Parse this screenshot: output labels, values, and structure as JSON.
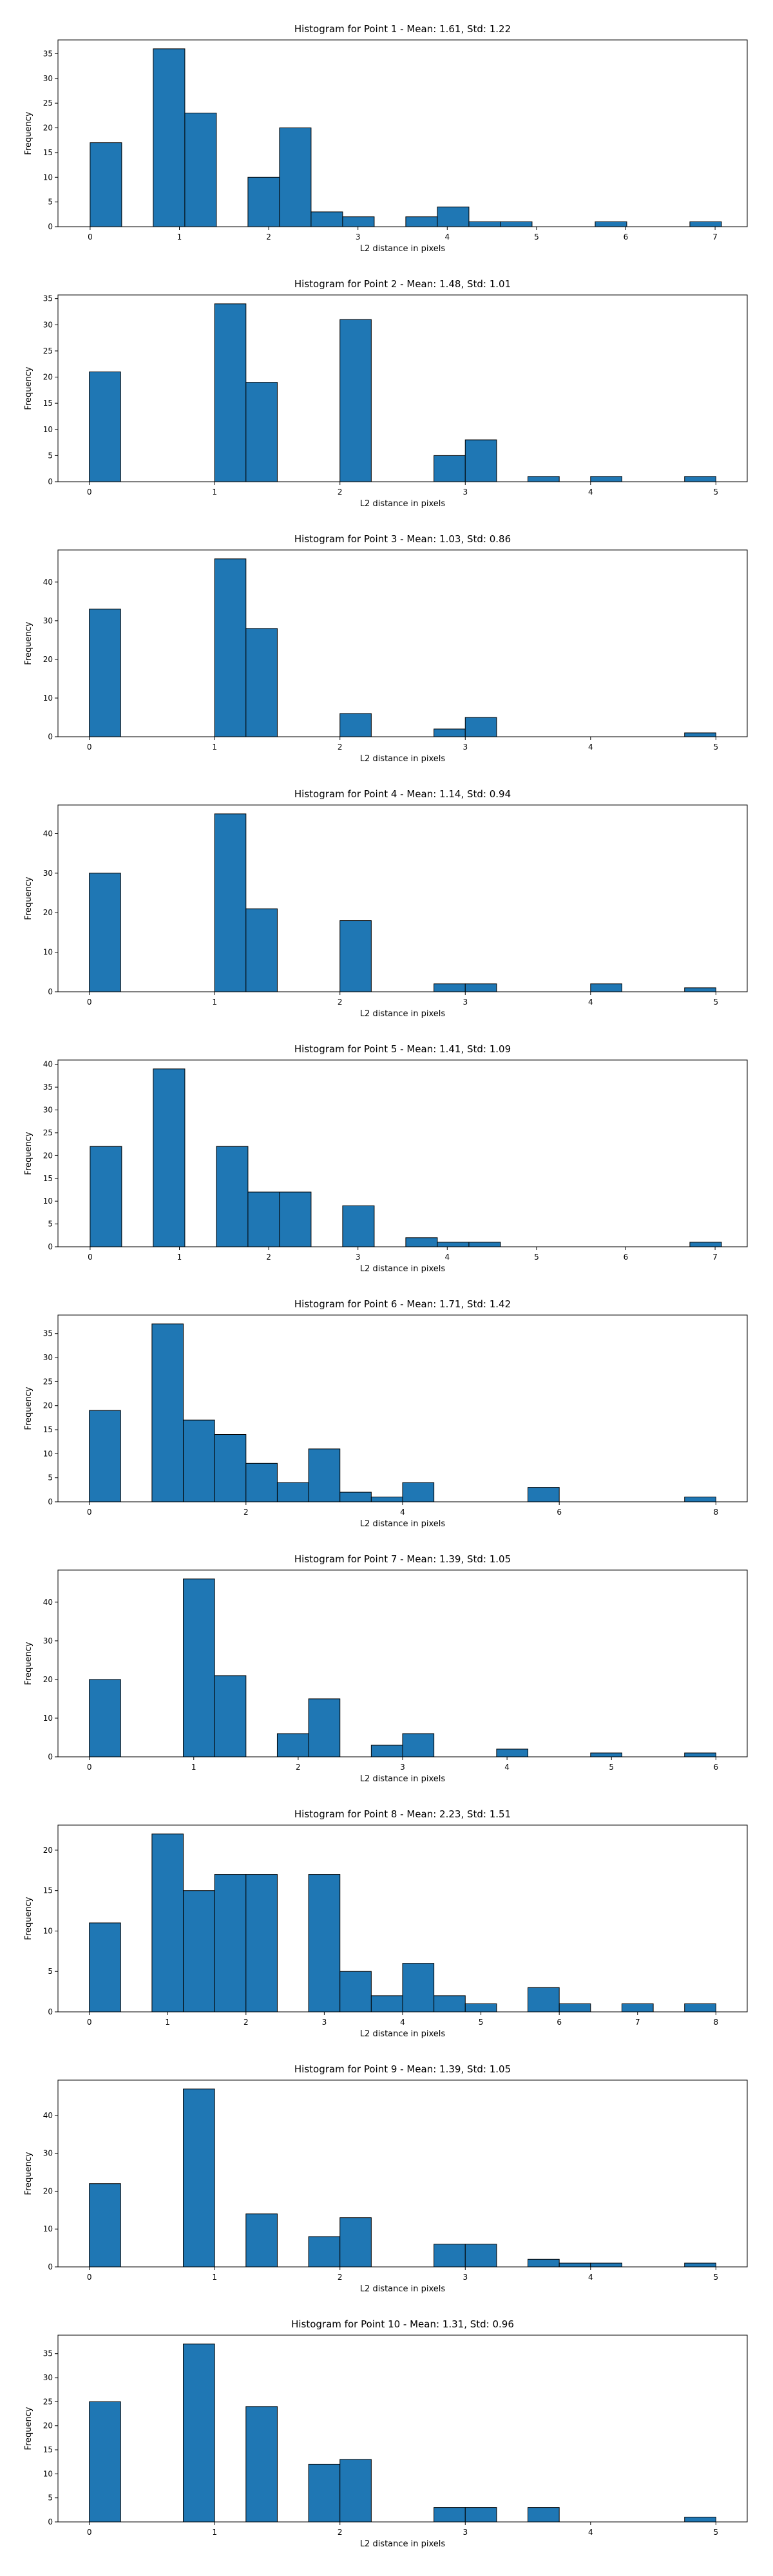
{
  "figure": {
    "background": "#ffffff",
    "bar_color": "#1f77b4",
    "edge_color": "#000000"
  },
  "chart_data": [
    {
      "type": "bar",
      "title": "Histogram for Point 1 - Mean: 1.61, Std: 1.22",
      "xlabel": "L2 distance in pixels",
      "ylabel": "Frequency",
      "xlim": [
        -0.36,
        7.36
      ],
      "ylim": [
        0,
        37.8
      ],
      "xticks": [
        0,
        1,
        2,
        3,
        4,
        5,
        6,
        7
      ],
      "yticks": [
        0,
        5,
        10,
        15,
        20,
        25,
        30,
        35
      ],
      "bin_width": 0.3536,
      "bins": [
        {
          "x": 0.0,
          "count": 17
        },
        {
          "x": 0.7071,
          "count": 36
        },
        {
          "x": 1.0607,
          "count": 23
        },
        {
          "x": 1.7678,
          "count": 10
        },
        {
          "x": 2.1213,
          "count": 20
        },
        {
          "x": 2.4749,
          "count": 3
        },
        {
          "x": 2.8284,
          "count": 2
        },
        {
          "x": 3.5355,
          "count": 2
        },
        {
          "x": 3.8891,
          "count": 4
        },
        {
          "x": 4.2426,
          "count": 1
        },
        {
          "x": 4.5962,
          "count": 1
        },
        {
          "x": 5.6569,
          "count": 1
        },
        {
          "x": 6.7175,
          "count": 1
        }
      ]
    },
    {
      "type": "bar",
      "title": "Histogram for Point 2 - Mean: 1.48, Std: 1.01",
      "xlabel": "L2 distance in pixels",
      "ylabel": "Frequency",
      "xlim": [
        -0.25,
        5.25
      ],
      "ylim": [
        0,
        35.7
      ],
      "xticks": [
        0,
        1,
        2,
        3,
        4,
        5
      ],
      "yticks": [
        0,
        5,
        10,
        15,
        20,
        25,
        30,
        35
      ],
      "bin_width": 0.25,
      "bins": [
        {
          "x": 0.0,
          "count": 21
        },
        {
          "x": 1.0,
          "count": 34
        },
        {
          "x": 1.25,
          "count": 19
        },
        {
          "x": 2.0,
          "count": 31
        },
        {
          "x": 2.75,
          "count": 5
        },
        {
          "x": 3.0,
          "count": 8
        },
        {
          "x": 3.5,
          "count": 1
        },
        {
          "x": 4.0,
          "count": 1
        },
        {
          "x": 4.75,
          "count": 1
        }
      ]
    },
    {
      "type": "bar",
      "title": "Histogram for Point 3 - Mean: 1.03, Std: 0.86",
      "xlabel": "L2 distance in pixels",
      "ylabel": "Frequency",
      "xlim": [
        -0.25,
        5.25
      ],
      "ylim": [
        0,
        48.3
      ],
      "xticks": [
        0,
        1,
        2,
        3,
        4,
        5
      ],
      "yticks": [
        0,
        10,
        20,
        30,
        40
      ],
      "bin_width": 0.25,
      "bins": [
        {
          "x": 0.0,
          "count": 33
        },
        {
          "x": 1.0,
          "count": 46
        },
        {
          "x": 1.25,
          "count": 28
        },
        {
          "x": 2.0,
          "count": 6
        },
        {
          "x": 2.75,
          "count": 2
        },
        {
          "x": 3.0,
          "count": 5
        },
        {
          "x": 4.75,
          "count": 1
        }
      ]
    },
    {
      "type": "bar",
      "title": "Histogram for Point 4 - Mean: 1.14, Std: 0.94",
      "xlabel": "L2 distance in pixels",
      "ylabel": "Frequency",
      "xlim": [
        -0.25,
        5.25
      ],
      "ylim": [
        0,
        47.25
      ],
      "xticks": [
        0,
        1,
        2,
        3,
        4,
        5
      ],
      "yticks": [
        0,
        10,
        20,
        30,
        40
      ],
      "bin_width": 0.25,
      "bins": [
        {
          "x": 0.0,
          "count": 30
        },
        {
          "x": 1.0,
          "count": 45
        },
        {
          "x": 1.25,
          "count": 21
        },
        {
          "x": 2.0,
          "count": 18
        },
        {
          "x": 2.75,
          "count": 2
        },
        {
          "x": 3.0,
          "count": 2
        },
        {
          "x": 4.0,
          "count": 2
        },
        {
          "x": 4.75,
          "count": 1
        }
      ]
    },
    {
      "type": "bar",
      "title": "Histogram for Point 5 - Mean: 1.41, Std: 1.09",
      "xlabel": "L2 distance in pixels",
      "ylabel": "Frequency",
      "xlim": [
        -0.36,
        7.36
      ],
      "ylim": [
        0,
        40.95
      ],
      "xticks": [
        0,
        1,
        2,
        3,
        4,
        5,
        6,
        7
      ],
      "yticks": [
        0,
        5,
        10,
        15,
        20,
        25,
        30,
        35,
        40
      ],
      "bin_width": 0.3536,
      "bins": [
        {
          "x": 0.0,
          "count": 22
        },
        {
          "x": 0.7071,
          "count": 39
        },
        {
          "x": 1.4142,
          "count": 22
        },
        {
          "x": 1.7678,
          "count": 12
        },
        {
          "x": 2.1213,
          "count": 12
        },
        {
          "x": 2.8284,
          "count": 9
        },
        {
          "x": 3.5355,
          "count": 2
        },
        {
          "x": 3.8891,
          "count": 1
        },
        {
          "x": 4.2426,
          "count": 1
        },
        {
          "x": 6.7175,
          "count": 1
        }
      ]
    },
    {
      "type": "bar",
      "title": "Histogram for Point 6 - Mean: 1.71, Std: 1.42",
      "xlabel": "L2 distance in pixels",
      "ylabel": "Frequency",
      "xlim": [
        -0.4,
        8.4
      ],
      "ylim": [
        0,
        38.85
      ],
      "xticks": [
        0,
        2,
        4,
        6,
        8
      ],
      "yticks": [
        0,
        5,
        10,
        15,
        20,
        25,
        30,
        35
      ],
      "bin_width": 0.4,
      "bins": [
        {
          "x": 0.0,
          "count": 19
        },
        {
          "x": 0.8,
          "count": 37
        },
        {
          "x": 1.2,
          "count": 17
        },
        {
          "x": 1.6,
          "count": 14
        },
        {
          "x": 2.0,
          "count": 8
        },
        {
          "x": 2.4,
          "count": 4
        },
        {
          "x": 2.8,
          "count": 11
        },
        {
          "x": 3.2,
          "count": 2
        },
        {
          "x": 3.6,
          "count": 1
        },
        {
          "x": 4.0,
          "count": 4
        },
        {
          "x": 5.6,
          "count": 3
        },
        {
          "x": 7.6,
          "count": 1
        }
      ]
    },
    {
      "type": "bar",
      "title": "Histogram for Point 7 - Mean: 1.39, Std: 1.05",
      "xlabel": "L2 distance in pixels",
      "ylabel": "Frequency",
      "xlim": [
        -0.3,
        6.3
      ],
      "ylim": [
        0,
        48.3
      ],
      "xticks": [
        0,
        1,
        2,
        3,
        4,
        5,
        6
      ],
      "yticks": [
        0,
        10,
        20,
        30,
        40
      ],
      "bin_width": 0.3,
      "bins": [
        {
          "x": 0.0,
          "count": 20
        },
        {
          "x": 0.9,
          "count": 46
        },
        {
          "x": 1.2,
          "count": 21
        },
        {
          "x": 1.8,
          "count": 6
        },
        {
          "x": 2.1,
          "count": 15
        },
        {
          "x": 2.7,
          "count": 3
        },
        {
          "x": 3.0,
          "count": 6
        },
        {
          "x": 3.9,
          "count": 2
        },
        {
          "x": 4.8,
          "count": 1
        },
        {
          "x": 5.7,
          "count": 1
        }
      ]
    },
    {
      "type": "bar",
      "title": "Histogram for Point 8 - Mean: 2.23, Std: 1.51",
      "xlabel": "L2 distance in pixels",
      "ylabel": "Frequency",
      "xlim": [
        -0.4,
        8.4
      ],
      "ylim": [
        0,
        23.1
      ],
      "xticks": [
        0,
        1,
        2,
        3,
        4,
        5,
        6,
        7,
        8
      ],
      "yticks": [
        0,
        5,
        10,
        15,
        20
      ],
      "bin_width": 0.4,
      "bins": [
        {
          "x": 0.0,
          "count": 11
        },
        {
          "x": 0.8,
          "count": 22
        },
        {
          "x": 1.2,
          "count": 15
        },
        {
          "x": 1.6,
          "count": 17
        },
        {
          "x": 2.0,
          "count": 17
        },
        {
          "x": 2.8,
          "count": 17
        },
        {
          "x": 3.2,
          "count": 5
        },
        {
          "x": 3.6,
          "count": 2
        },
        {
          "x": 4.0,
          "count": 6
        },
        {
          "x": 4.4,
          "count": 2
        },
        {
          "x": 4.8,
          "count": 1
        },
        {
          "x": 5.6,
          "count": 3
        },
        {
          "x": 6.0,
          "count": 1
        },
        {
          "x": 6.8,
          "count": 1
        },
        {
          "x": 7.6,
          "count": 1
        }
      ]
    },
    {
      "type": "bar",
      "title": "Histogram for Point 9 - Mean: 1.39, Std: 1.05",
      "xlabel": "L2 distance in pixels",
      "ylabel": "Frequency",
      "xlim": [
        -0.25,
        5.25
      ],
      "ylim": [
        0,
        49.35
      ],
      "xticks": [
        0,
        1,
        2,
        3,
        4,
        5
      ],
      "yticks": [
        0,
        10,
        20,
        30,
        40
      ],
      "bin_width": 0.25,
      "bins": [
        {
          "x": 0.0,
          "count": 22
        },
        {
          "x": 0.75,
          "count": 47
        },
        {
          "x": 1.25,
          "count": 14
        },
        {
          "x": 1.75,
          "count": 8
        },
        {
          "x": 2.0,
          "count": 13
        },
        {
          "x": 2.75,
          "count": 6
        },
        {
          "x": 3.0,
          "count": 6
        },
        {
          "x": 3.5,
          "count": 2
        },
        {
          "x": 3.75,
          "count": 1
        },
        {
          "x": 4.0,
          "count": 1
        },
        {
          "x": 4.75,
          "count": 1
        }
      ]
    },
    {
      "type": "bar",
      "title": "Histogram for Point 10 - Mean: 1.31, Std: 0.96",
      "xlabel": "L2 distance in pixels",
      "ylabel": "Frequency",
      "xlim": [
        -0.25,
        5.25
      ],
      "ylim": [
        0,
        38.85
      ],
      "xticks": [
        0,
        1,
        2,
        3,
        4,
        5
      ],
      "yticks": [
        0,
        5,
        10,
        15,
        20,
        25,
        30,
        35
      ],
      "bin_width": 0.25,
      "bins": [
        {
          "x": 0.0,
          "count": 25
        },
        {
          "x": 0.75,
          "count": 37
        },
        {
          "x": 1.25,
          "count": 24
        },
        {
          "x": 1.75,
          "count": 12
        },
        {
          "x": 2.0,
          "count": 13
        },
        {
          "x": 2.75,
          "count": 3
        },
        {
          "x": 3.0,
          "count": 3
        },
        {
          "x": 3.5,
          "count": 3
        },
        {
          "x": 4.75,
          "count": 1
        }
      ]
    }
  ]
}
